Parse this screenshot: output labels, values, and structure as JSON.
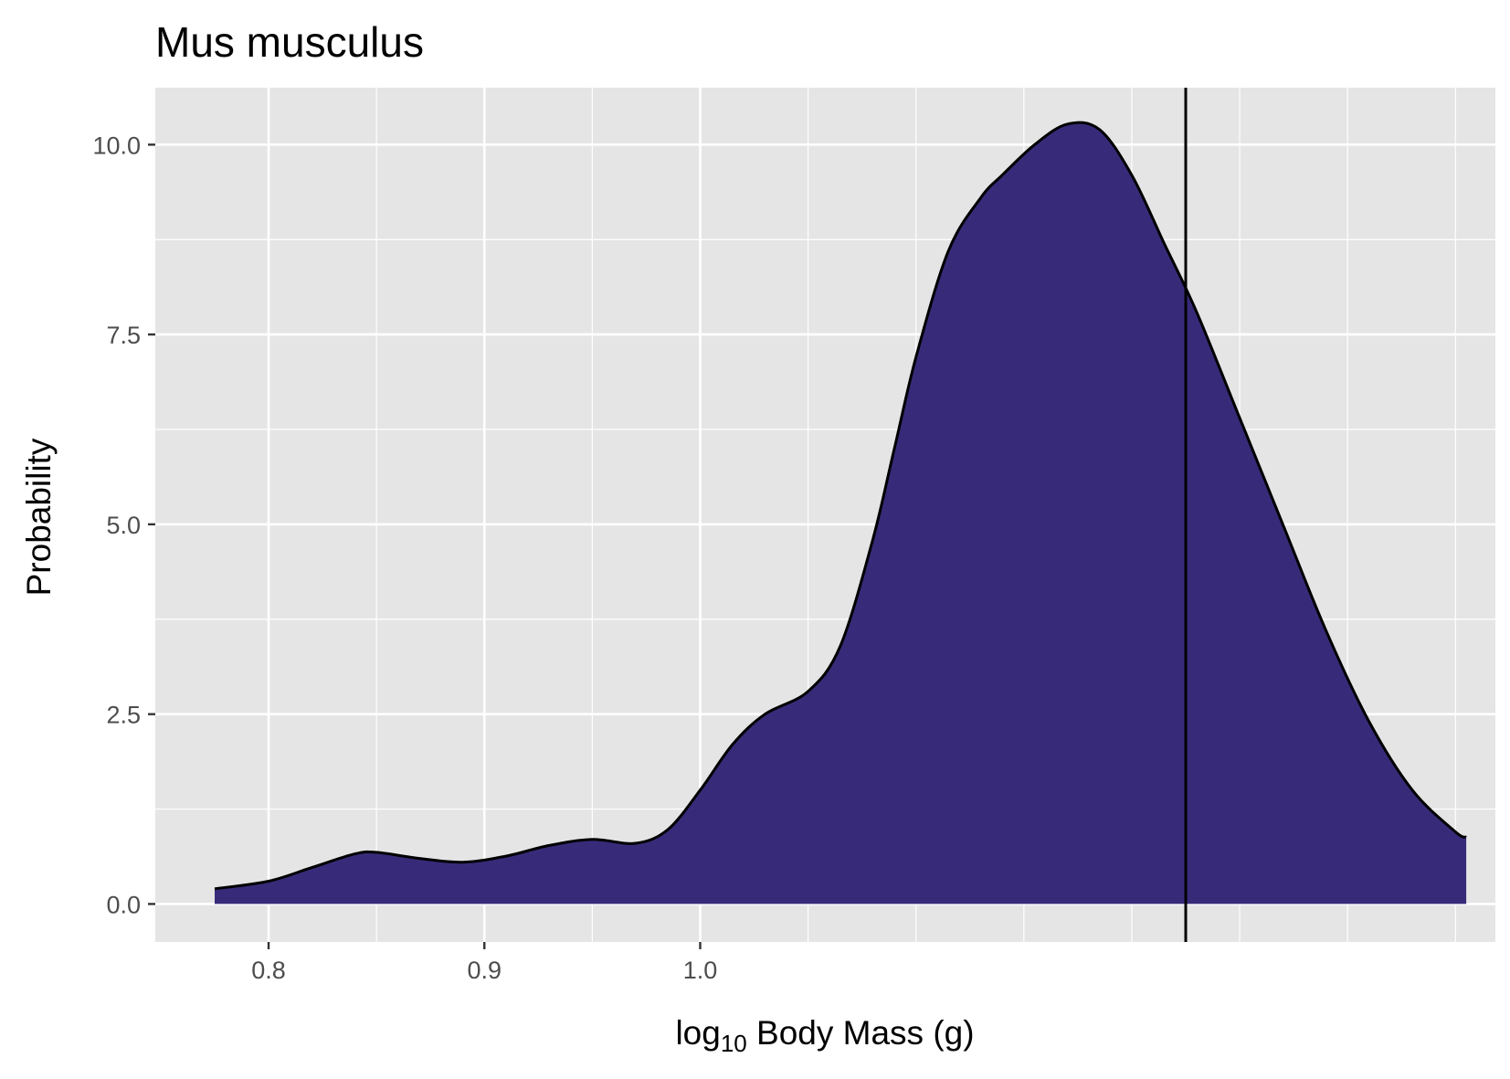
{
  "chart_data": {
    "type": "area",
    "title": "Mus musculus",
    "xlabel": {
      "prefix": "log",
      "subscript": "10",
      "suffix": " Body Mass (g)"
    },
    "ylabel": "Probability",
    "xlim": [
      0.7475,
      1.3685
    ],
    "ylim": [
      -0.5,
      10.75
    ],
    "x_ticks": [
      0.8,
      0.9,
      1.0
    ],
    "x_tick_labels": [
      "0.8",
      "0.9",
      "1.0"
    ],
    "x_minor_grid": [
      0.85,
      0.95,
      1.05,
      1.1,
      1.15,
      1.2,
      1.25,
      1.3,
      1.35
    ],
    "y_ticks": [
      0,
      2.5,
      5,
      7.5,
      10
    ],
    "y_tick_labels": [
      "0.0",
      "2.5",
      "5.0",
      "7.5",
      "10.0"
    ],
    "y_minor_grid": [
      1.25,
      3.75,
      6.25,
      8.75
    ],
    "grid": true,
    "fill_color": "#372b79",
    "line_color": "#000000",
    "panel_background": "#e5e5e5",
    "vline_x": 1.225,
    "series": [
      {
        "x": [
          0.775,
          0.8,
          0.82,
          0.84,
          0.85,
          0.87,
          0.89,
          0.91,
          0.93,
          0.95,
          0.97,
          0.985,
          1.0,
          1.015,
          1.03,
          1.05,
          1.065,
          1.08,
          1.09,
          1.1,
          1.115,
          1.13,
          1.14,
          1.155,
          1.17,
          1.185,
          1.2,
          1.215,
          1.23,
          1.25,
          1.27,
          1.29,
          1.31,
          1.33,
          1.35,
          1.355
        ],
        "y": [
          0.2,
          0.3,
          0.48,
          0.66,
          0.68,
          0.6,
          0.55,
          0.63,
          0.77,
          0.85,
          0.8,
          0.98,
          1.5,
          2.1,
          2.5,
          2.8,
          3.4,
          4.8,
          6.0,
          7.2,
          8.6,
          9.3,
          9.6,
          10.0,
          10.27,
          10.2,
          9.6,
          8.7,
          7.8,
          6.4,
          5.0,
          3.6,
          2.4,
          1.5,
          0.95,
          0.88
        ]
      }
    ]
  }
}
